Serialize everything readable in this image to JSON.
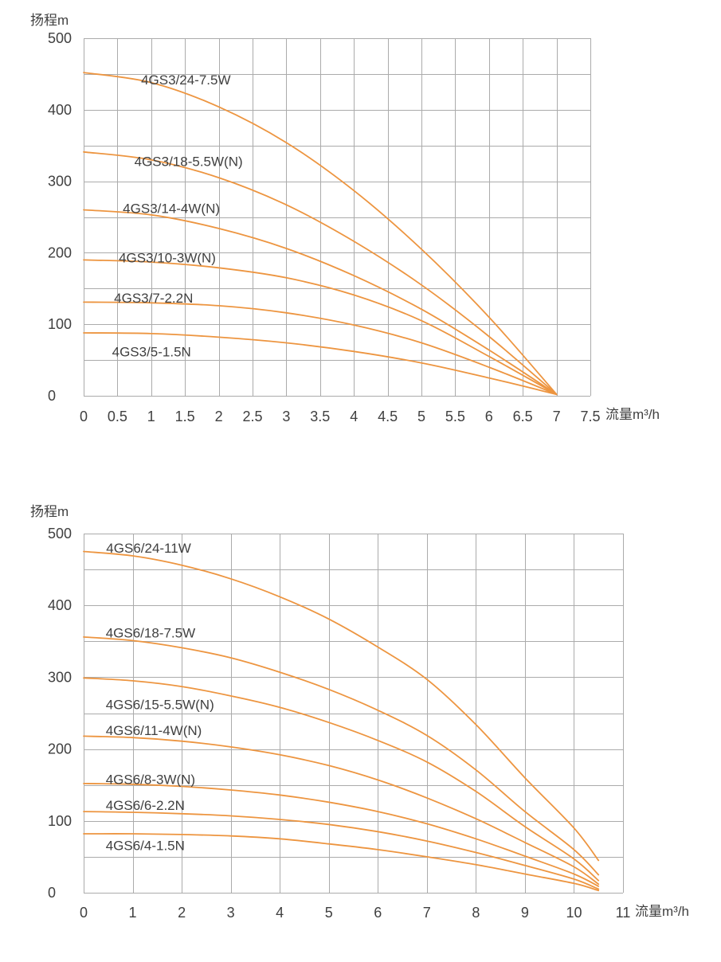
{
  "page": {
    "background": "#ffffff"
  },
  "colors": {
    "curve": "#ED9540",
    "grid": "#ABABAB",
    "text": "#404040"
  },
  "chart_data": [
    {
      "type": "line",
      "title": "",
      "ylabel": "扬程m",
      "xlabel": "流量m³/h",
      "xlim": [
        0,
        7.5
      ],
      "ylim": [
        0,
        500
      ],
      "x_ticks": [
        0,
        0.5,
        1,
        1.5,
        2,
        2.5,
        3,
        3.5,
        4,
        4.5,
        5,
        5.5,
        6,
        6.5,
        7,
        7.5
      ],
      "y_ticks": [
        500,
        400,
        300,
        200,
        100,
        0
      ],
      "y_grid_step": 50,
      "grid": true,
      "legend_position": "inline-labels",
      "series": [
        {
          "name": "4GS3/24-7.5W",
          "x": [
            0,
            1,
            2,
            3,
            4,
            5,
            6,
            7
          ],
          "y": [
            452,
            438,
            404,
            354,
            287,
            205,
            110,
            2
          ],
          "label_pos": [
            0.85,
            442
          ]
        },
        {
          "name": "4GS3/18-5.5W(N)",
          "x": [
            0,
            1,
            2,
            3,
            4,
            5,
            6,
            7
          ],
          "y": [
            341,
            330,
            305,
            267,
            216,
            155,
            83,
            2
          ],
          "label_pos": [
            0.75,
            328
          ]
        },
        {
          "name": "4GS3/14-4W(N)",
          "x": [
            0,
            1,
            2,
            3,
            4,
            5,
            6,
            7
          ],
          "y": [
            260,
            253,
            234,
            206,
            168,
            121,
            64,
            2
          ],
          "label_pos": [
            0.58,
            262
          ]
        },
        {
          "name": "4GS3/10-3W(N)",
          "x": [
            0,
            1,
            2,
            3,
            4,
            5,
            6,
            7
          ],
          "y": [
            190,
            187,
            179,
            165,
            141,
            105,
            55,
            2
          ],
          "label_pos": [
            0.52,
            193
          ]
        },
        {
          "name": "4GS3/7-2.2N",
          "x": [
            0,
            1,
            2,
            3,
            4,
            5,
            6,
            7
          ],
          "y": [
            131,
            130,
            126,
            116,
            99,
            74,
            40,
            2
          ],
          "label_pos": [
            0.45,
            137
          ]
        },
        {
          "name": "4GS3/5-1.5N",
          "x": [
            0,
            1,
            2,
            3,
            4,
            5,
            6,
            7
          ],
          "y": [
            88,
            87,
            82,
            74,
            62,
            46,
            25,
            2
          ],
          "label_pos": [
            0.42,
            62
          ]
        }
      ]
    },
    {
      "type": "line",
      "title": "",
      "ylabel": "扬程m",
      "xlabel": "流量m³/h",
      "xlim": [
        0,
        11
      ],
      "ylim": [
        0,
        500
      ],
      "x_ticks": [
        0,
        1,
        2,
        3,
        4,
        5,
        6,
        7,
        8,
        9,
        10,
        11
      ],
      "y_ticks": [
        500,
        400,
        300,
        200,
        100,
        0
      ],
      "y_grid_step": 50,
      "grid": true,
      "legend_position": "inline-labels",
      "series": [
        {
          "name": "4GS6/24-11W",
          "x": [
            0,
            1,
            2,
            3,
            4,
            5,
            6,
            7,
            8,
            9,
            10,
            10.5
          ],
          "y": [
            475,
            469,
            456,
            437,
            412,
            381,
            342,
            297,
            234,
            160,
            90,
            45
          ],
          "label_pos": [
            0.46,
            480
          ]
        },
        {
          "name": "4GS6/18-7.5W",
          "x": [
            0,
            1,
            2,
            3,
            4,
            5,
            6,
            7,
            8,
            9,
            10,
            10.5
          ],
          "y": [
            356,
            351,
            341,
            327,
            307,
            283,
            254,
            219,
            171,
            113,
            60,
            25
          ],
          "label_pos": [
            0.45,
            362
          ]
        },
        {
          "name": "4GS6/15-5.5W(N)",
          "x": [
            0,
            1,
            2,
            3,
            4,
            5,
            6,
            7,
            8,
            9,
            10,
            10.5
          ],
          "y": [
            299,
            295,
            287,
            274,
            258,
            237,
            212,
            182,
            141,
            92,
            47,
            17
          ],
          "label_pos": [
            0.45,
            262
          ]
        },
        {
          "name": "4GS6/11-4W(N)",
          "x": [
            0,
            1,
            2,
            3,
            4,
            5,
            6,
            7,
            8,
            9,
            10,
            10.5
          ],
          "y": [
            218,
            216,
            211,
            203,
            192,
            177,
            157,
            132,
            103,
            70,
            36,
            12
          ],
          "label_pos": [
            0.45,
            226
          ]
        },
        {
          "name": "4GS6/8-3W(N)",
          "x": [
            0,
            1,
            2,
            3,
            4,
            5,
            6,
            7,
            8,
            9,
            10,
            10.5
          ],
          "y": [
            152,
            151,
            148,
            143,
            136,
            126,
            113,
            96,
            75,
            51,
            26,
            9
          ],
          "label_pos": [
            0.45,
            158
          ]
        },
        {
          "name": "4GS6/6-2.2N",
          "x": [
            0,
            1,
            2,
            3,
            4,
            5,
            6,
            7,
            8,
            9,
            10,
            10.5
          ],
          "y": [
            113,
            112,
            110,
            107,
            102,
            95,
            85,
            72,
            56,
            38,
            19,
            5
          ],
          "label_pos": [
            0.45,
            122
          ]
        },
        {
          "name": "4GS6/4-1.5N",
          "x": [
            0,
            1,
            2,
            3,
            4,
            5,
            6,
            7,
            8,
            9,
            10,
            10.5
          ],
          "y": [
            82,
            82,
            81,
            79,
            75,
            68,
            60,
            50,
            39,
            26,
            13,
            3
          ],
          "label_pos": [
            0.45,
            66
          ]
        }
      ]
    }
  ]
}
